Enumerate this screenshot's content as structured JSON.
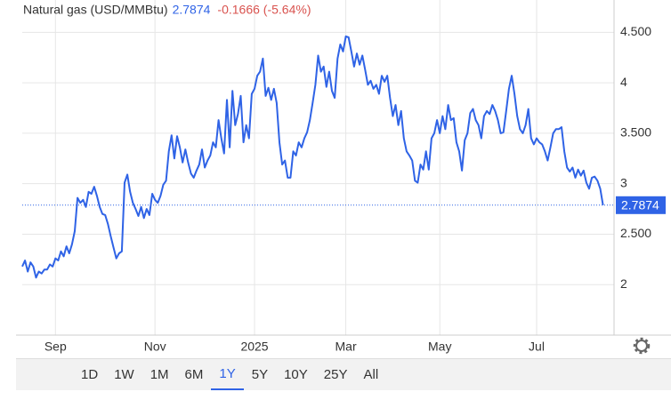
{
  "chart_data": {
    "type": "line",
    "title": "Natural gas (USD/MMBtu)",
    "last_price": "2.7874",
    "change": "-0.1666 (-5.64%)",
    "x": [
      0,
      1,
      2,
      3,
      4,
      5,
      6,
      7,
      8,
      9,
      10,
      11,
      12,
      13,
      14,
      15,
      16,
      17,
      18,
      19,
      20,
      21,
      22,
      23,
      24,
      25,
      26,
      27,
      28,
      29,
      30,
      31,
      32,
      33,
      34,
      35,
      36,
      37,
      38,
      39,
      40,
      41,
      42,
      43,
      44,
      45,
      46,
      47,
      48,
      49,
      50,
      51,
      52,
      53,
      54,
      55,
      56,
      57,
      58,
      59,
      60,
      61,
      62,
      63,
      64,
      65,
      66,
      67,
      68,
      69,
      70,
      71,
      72,
      73,
      74,
      75,
      76,
      77,
      78,
      79,
      80,
      81,
      82,
      83,
      84,
      85,
      86,
      87,
      88,
      89,
      90,
      91,
      92,
      93,
      94,
      95,
      96,
      97,
      98,
      99,
      100,
      101,
      102,
      103,
      104,
      105,
      106,
      107,
      108,
      109,
      110,
      111,
      112,
      113,
      114,
      115,
      116,
      117,
      118,
      119,
      120,
      121,
      122,
      123,
      124,
      125,
      126,
      127,
      128,
      129,
      130,
      131,
      132,
      133,
      134,
      135,
      136,
      137,
      138,
      139,
      140,
      141,
      142,
      143,
      144,
      145,
      146,
      147,
      148,
      149,
      150,
      151,
      152,
      153,
      154,
      155,
      156,
      157,
      158,
      159,
      160,
      161,
      162,
      163,
      164,
      165,
      166,
      167,
      168,
      169,
      170,
      171,
      172,
      173,
      174,
      175,
      176,
      177,
      178,
      179,
      180,
      181,
      182,
      183,
      184,
      185,
      186,
      187,
      188,
      189,
      190,
      191,
      192,
      193,
      194,
      195,
      196,
      197,
      198,
      199,
      200,
      201,
      202,
      203,
      204,
      205,
      206,
      207,
      208,
      209,
      210
    ],
    "series": [
      {
        "color": "#2f63e6",
        "values": [
          2.18,
          2.24,
          2.13,
          2.22,
          2.18,
          2.07,
          2.13,
          2.11,
          2.15,
          2.15,
          2.2,
          2.18,
          2.26,
          2.24,
          2.33,
          2.28,
          2.38,
          2.31,
          2.4,
          2.53,
          2.86,
          2.81,
          2.84,
          2.77,
          2.92,
          2.9,
          2.97,
          2.88,
          2.77,
          2.7,
          2.69,
          2.6,
          2.48,
          2.37,
          2.26,
          2.31,
          2.33,
          3.01,
          3.09,
          2.92,
          2.81,
          2.75,
          2.68,
          2.77,
          2.66,
          2.75,
          2.69,
          2.9,
          2.84,
          2.81,
          2.88,
          2.99,
          3.03,
          3.32,
          3.48,
          3.25,
          3.47,
          3.36,
          3.21,
          3.34,
          3.21,
          3.1,
          3.06,
          3.13,
          3.19,
          3.34,
          3.16,
          3.23,
          3.28,
          3.41,
          3.36,
          3.63,
          3.45,
          3.3,
          3.83,
          3.36,
          3.92,
          3.58,
          3.69,
          3.87,
          3.41,
          3.58,
          3.45,
          3.89,
          3.94,
          4.07,
          4.11,
          4.24,
          3.87,
          3.95,
          3.83,
          3.94,
          3.8,
          3.41,
          3.19,
          3.23,
          3.06,
          3.06,
          3.32,
          3.28,
          3.41,
          3.36,
          3.45,
          3.51,
          3.63,
          3.8,
          3.98,
          4.27,
          4.11,
          4.16,
          3.96,
          4.11,
          3.92,
          3.85,
          4.24,
          4.38,
          4.31,
          4.46,
          4.45,
          4.31,
          4.16,
          4.29,
          4.18,
          4.27,
          4.13,
          3.98,
          4.02,
          3.94,
          3.98,
          3.89,
          4.07,
          4.01,
          4.07,
          3.85,
          3.67,
          3.78,
          3.58,
          3.72,
          3.45,
          3.32,
          3.28,
          3.23,
          3.03,
          3.01,
          3.19,
          3.14,
          3.32,
          3.14,
          3.45,
          3.5,
          3.63,
          3.5,
          3.67,
          3.54,
          3.78,
          3.63,
          3.65,
          3.41,
          3.32,
          3.13,
          3.43,
          3.5,
          3.7,
          3.74,
          3.63,
          3.58,
          3.45,
          3.67,
          3.72,
          3.69,
          3.78,
          3.72,
          3.63,
          3.5,
          3.51,
          3.72,
          3.94,
          4.07,
          3.89,
          3.67,
          3.54,
          3.5,
          3.58,
          3.74,
          3.45,
          3.39,
          3.45,
          3.41,
          3.39,
          3.32,
          3.23,
          3.36,
          3.5,
          3.54,
          3.54,
          3.56,
          3.32,
          3.16,
          3.12,
          3.16,
          3.06,
          3.14,
          3.08,
          3.13,
          3.01,
          2.95,
          3.06,
          3.07,
          3.03,
          2.95,
          2.7874
        ]
      }
    ],
    "xlim": [
      0,
      214
    ],
    "xticks": [
      {
        "value": 12,
        "label": "Sep"
      },
      {
        "value": 48,
        "label": "Nov"
      },
      {
        "value": 84,
        "label": "2025"
      },
      {
        "value": 117,
        "label": "Mar"
      },
      {
        "value": 151,
        "label": "May"
      },
      {
        "value": 186,
        "label": "Jul"
      }
    ],
    "ylim": [
      1.5,
      4.82
    ],
    "yticks": [
      2,
      {
        "value": 2.5,
        "label": "2.500"
      },
      3,
      {
        "value": 3.5,
        "label": "3.500"
      },
      4,
      {
        "value": 4.5,
        "label": "4.500"
      }
    ],
    "grid": true,
    "range_buttons": [
      "1D",
      "1W",
      "1M",
      "6M",
      "1Y",
      "5Y",
      "10Y",
      "25Y",
      "All"
    ],
    "selected_range_index": 4
  }
}
